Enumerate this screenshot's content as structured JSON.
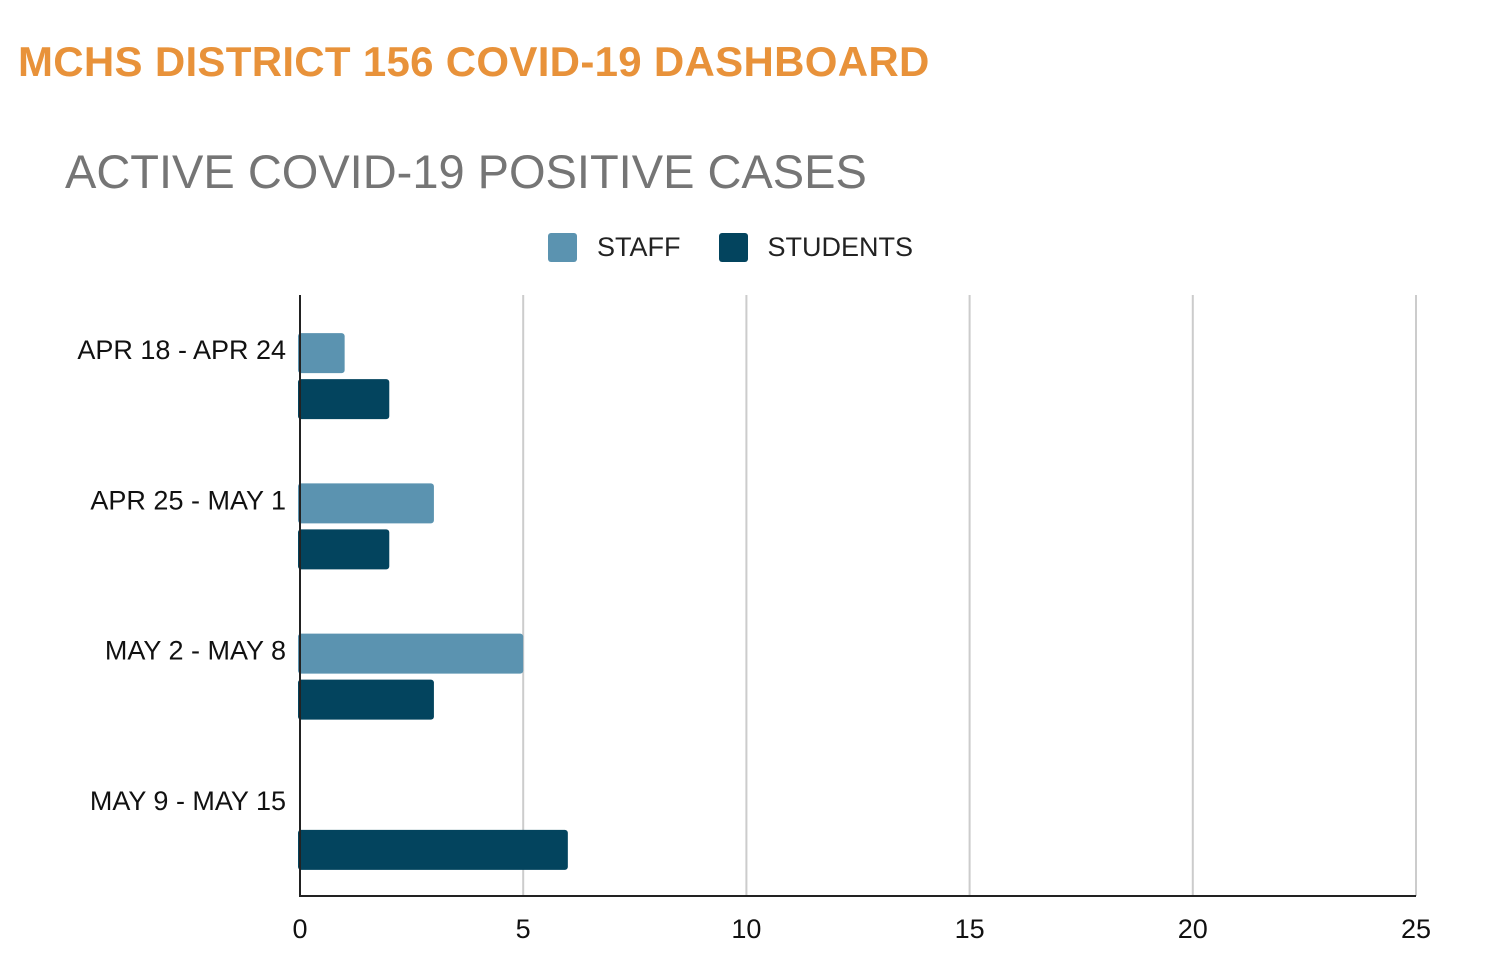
{
  "header": {
    "title": "MCHS DISTRICT 156 COVID-19 DASHBOARD"
  },
  "chart_data": {
    "type": "bar",
    "orientation": "horizontal",
    "title": "ACTIVE COVID-19 POSITIVE CASES",
    "categories": [
      "APR 18 - APR 24",
      "APR 25 - MAY 1",
      "MAY 2 - MAY 8",
      "MAY 9 - MAY 15"
    ],
    "series": [
      {
        "name": "STAFF",
        "color": "#5b93b0",
        "values": [
          1,
          3,
          5,
          0
        ]
      },
      {
        "name": "STUDENTS",
        "color": "#03445e",
        "values": [
          2,
          2,
          3,
          6
        ]
      }
    ],
    "xlim": [
      0,
      25
    ],
    "xticks": [
      0,
      5,
      10,
      15,
      20,
      25
    ],
    "xlabel": "",
    "ylabel": "",
    "grid": true,
    "legend_position": "top-center"
  }
}
